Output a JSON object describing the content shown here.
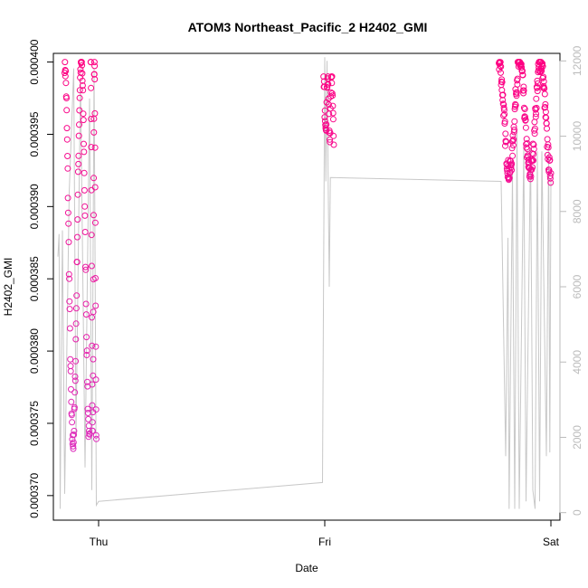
{
  "chart_data": {
    "type": "scatter",
    "title": "ATOM3 Northeast_Pacific_2 H2402_GMI",
    "xlabel": "Date",
    "ylabel": "H2402_GMI",
    "x_ticks": [
      "Thu",
      "Fri",
      "Sat"
    ],
    "x_range_days": [
      -0.2,
      2.04
    ],
    "left_axis": {
      "ticks": [
        "0.000370",
        "0.000375",
        "0.000380",
        "0.000385",
        "0.000390",
        "0.000395",
        "0.000400"
      ],
      "range": [
        0.0003683,
        0.0004006
      ]
    },
    "right_axis": {
      "ticks": [
        "0",
        "2000",
        "4000",
        "6000",
        "8000",
        "10000",
        "12000"
      ],
      "range": [
        -200,
        12200
      ],
      "color": "#bbbbbb"
    },
    "colors": {
      "series_low": "#d633c6",
      "series_high": "#ff0080",
      "altitude_line": "#c8c8c8",
      "axis": "#000000"
    },
    "series": [
      {
        "role": "points",
        "marker": "open-circle",
        "clusters": [
          {
            "t_start": -0.15,
            "t_end": -0.04,
            "y_low": 0.000369,
            "y_high": 0.0004
          },
          {
            "t_start": -0.035,
            "t_end": -0.01,
            "y_low": 0.00037,
            "y_high": 0.0004
          },
          {
            "t_start": 0.995,
            "t_end": 1.04,
            "y_low": 0.000394,
            "y_high": 0.000399
          },
          {
            "t_start": 1.77,
            "t_end": 2.0,
            "y_low": 0.000391,
            "y_high": 0.0004
          }
        ]
      },
      {
        "role": "line",
        "axis": "right",
        "points": [
          [
            -0.18,
            6800
          ],
          [
            -0.175,
            7400
          ],
          [
            -0.17,
            100
          ],
          [
            -0.16,
            7500
          ],
          [
            -0.15,
            500
          ],
          [
            -0.13,
            8500
          ],
          [
            -0.11,
            11800
          ],
          [
            -0.1,
            2000
          ],
          [
            -0.08,
            11500
          ],
          [
            -0.06,
            1200
          ],
          [
            -0.04,
            11000
          ],
          [
            -0.03,
            600
          ],
          [
            -0.02,
            11800
          ],
          [
            -0.01,
            200
          ],
          [
            0.0,
            300
          ],
          [
            0.99,
            800
          ],
          [
            1.0,
            12100
          ],
          [
            1.005,
            8800
          ],
          [
            1.01,
            12000
          ],
          [
            1.015,
            9000
          ],
          [
            1.02,
            6000
          ],
          [
            1.025,
            8900
          ],
          [
            1.78,
            8800
          ],
          [
            1.8,
            1500
          ],
          [
            1.81,
            7300
          ],
          [
            1.815,
            100
          ],
          [
            1.83,
            9000
          ],
          [
            1.84,
            100
          ],
          [
            1.85,
            10200
          ],
          [
            1.86,
            100
          ],
          [
            1.88,
            9700
          ],
          [
            1.89,
            300
          ],
          [
            1.91,
            9700
          ],
          [
            1.92,
            600
          ],
          [
            1.93,
            100
          ],
          [
            1.94,
            9600
          ],
          [
            1.95,
            300
          ],
          [
            1.96,
            9600
          ],
          [
            1.98,
            1500
          ],
          [
            1.99,
            9600
          ],
          [
            1.995,
            1600
          ],
          [
            2.0,
            8800
          ]
        ]
      }
    ]
  }
}
